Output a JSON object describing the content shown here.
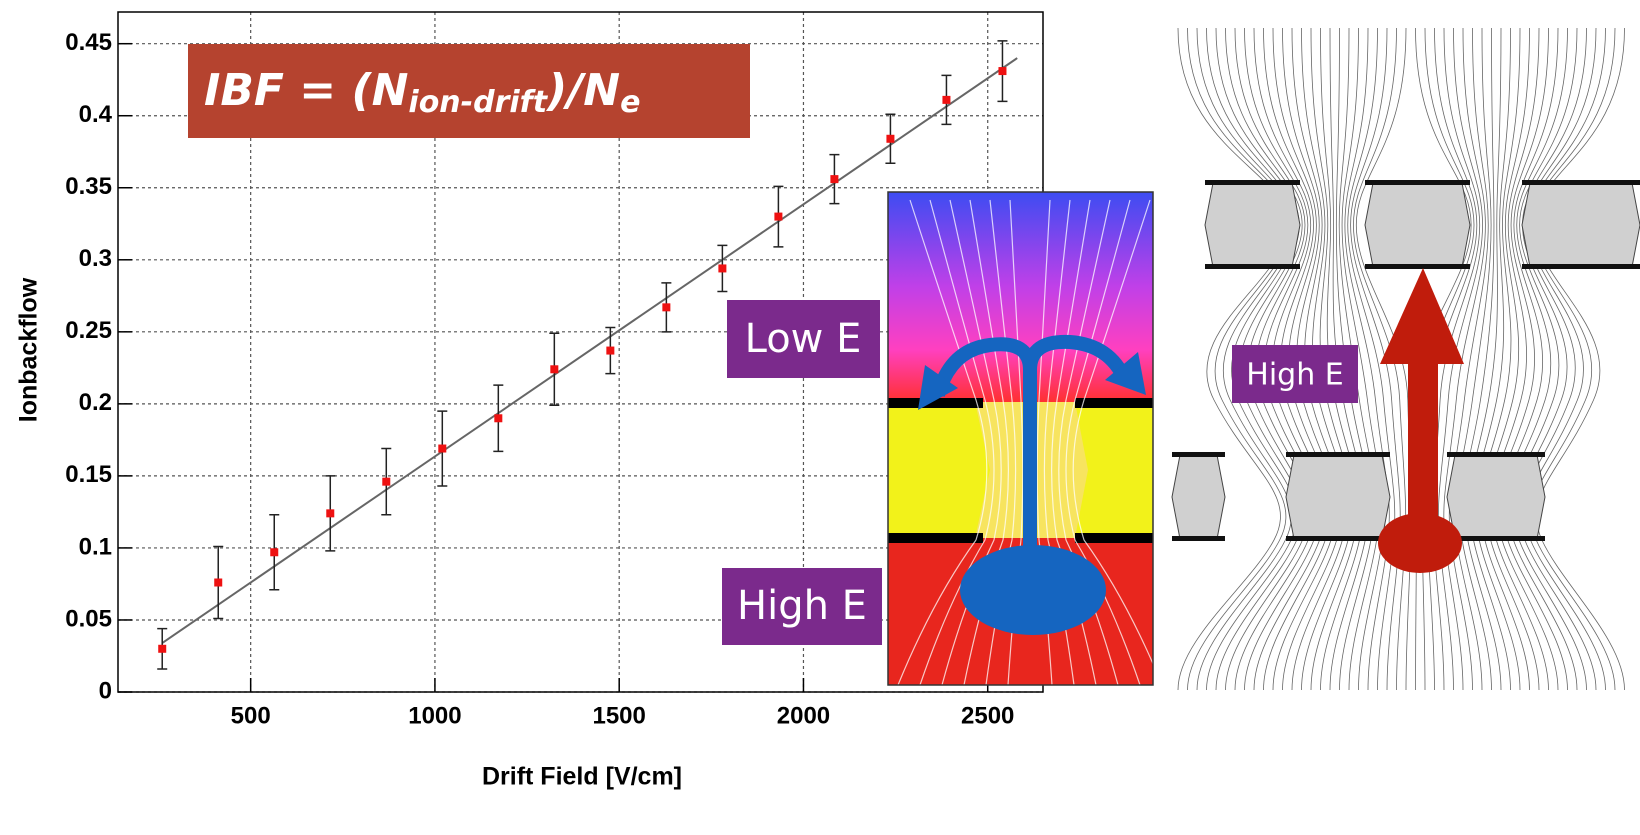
{
  "chart_data": {
    "type": "scatter",
    "x_label": "Drift Field [V/cm]",
    "y_label": "Ionbackflow",
    "x": [
      260,
      412,
      564,
      716,
      868,
      1020,
      1172,
      1324,
      1476,
      1628,
      1780,
      1932,
      2084,
      2236,
      2388,
      2540
    ],
    "values": [
      0.03,
      0.076,
      0.097,
      0.124,
      0.146,
      0.169,
      0.19,
      0.224,
      0.237,
      0.267,
      0.294,
      0.33,
      0.356,
      0.384,
      0.411,
      0.431
    ],
    "errors": [
      0.014,
      0.025,
      0.026,
      0.026,
      0.023,
      0.026,
      0.023,
      0.025,
      0.016,
      0.017,
      0.016,
      0.021,
      0.017,
      0.017,
      0.017,
      0.021
    ],
    "color": "#ee1111",
    "fit_line": {
      "x": [
        260,
        2580
      ],
      "values": [
        0.034,
        0.44
      ],
      "color": "#666666"
    },
    "xlim": [
      140,
      2650
    ],
    "ylim": [
      0,
      0.472
    ],
    "xticks": [
      500,
      1000,
      1500,
      2000,
      2500
    ],
    "yticks": [
      0,
      0.05,
      0.1,
      0.15,
      0.2,
      0.25,
      0.3,
      0.35,
      0.4,
      0.45
    ],
    "grid": true,
    "annotations": {
      "formula": [
        "IBF = (N",
        "ion-drift",
        ")/N",
        "e"
      ],
      "low_e": "Low E",
      "high_e_inset": "High E",
      "high_e_right": "High E"
    }
  }
}
